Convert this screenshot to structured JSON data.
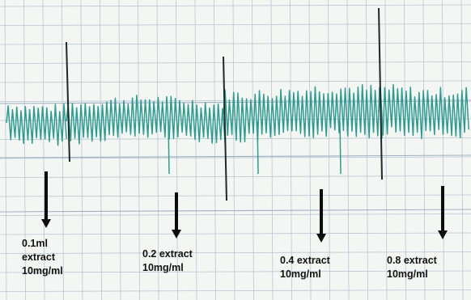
{
  "chart_data": {
    "type": "line",
    "title": "",
    "xlabel": "",
    "ylabel": "",
    "grid": true,
    "colors": {
      "paper": "#f4f6f4",
      "grid": "#b8c6d4",
      "trace": "#2f9b8f",
      "event_mark": "#1c2a2a",
      "arrow": "#0d0d0d"
    },
    "baseline_amplitude": 1.0,
    "annotations": [
      {
        "line1": "0.1ml",
        "line2": "extract",
        "line3": "10mg/ml",
        "relative_amplitude": 1.0
      },
      {
        "line1": "0.2 extract",
        "line2": "10mg/ml",
        "line3": "",
        "relative_amplitude": 1.05
      },
      {
        "line1": "0.4 extract",
        "line2": "10mg/ml",
        "line3": "",
        "relative_amplitude": 1.3
      },
      {
        "line1": "0.8 extract",
        "line2": "10mg/ml",
        "line3": "",
        "relative_amplitude": 1.25
      }
    ]
  }
}
